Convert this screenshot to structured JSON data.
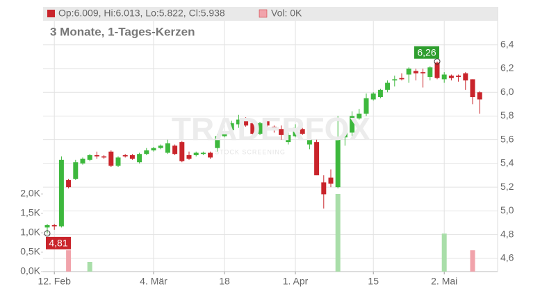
{
  "chart_data": {
    "type": "candlestick",
    "title": "Op:6.009, Hi:6.013, Lo:5.822, Cl:5.938",
    "volume_title": "Vol: 0K",
    "subtitle": "3 Monate, 1-Tages-Kerzen",
    "watermark": "TRADERFOX",
    "watermark_sub": "STOCK SCREENING",
    "up_color": "#3db83d",
    "down_color": "#c9242b",
    "volume_up_color": "#a9dea9",
    "volume_down_color": "#f1a3ab",
    "categories": [
      null,
      "12. Feb",
      null,
      null,
      null,
      null,
      null,
      null,
      null,
      null,
      null,
      null,
      null,
      null,
      null,
      "4. Mär",
      null,
      null,
      null,
      null,
      null,
      null,
      null,
      null,
      null,
      "18",
      null,
      null,
      null,
      null,
      null,
      null,
      null,
      null,
      null,
      "1. Apr",
      null,
      null,
      null,
      null,
      null,
      null,
      null,
      null,
      null,
      null,
      "15",
      null,
      null,
      null,
      null,
      null,
      null,
      null,
      null,
      null,
      "2. Mai",
      null,
      null,
      null,
      null,
      null
    ],
    "open": [
      4.86,
      4.88,
      4.87,
      5.26,
      5.27,
      5.4,
      5.43,
      5.47,
      5.46,
      5.5,
      5.38,
      5.47,
      5.47,
      5.41,
      5.48,
      5.51,
      5.53,
      5.49,
      5.55,
      5.58,
      5.47,
      5.47,
      5.48,
      5.49,
      5.53,
      5.63,
      5.68,
      5.73,
      5.77,
      5.74,
      5.65,
      5.76,
      5.71,
      5.69,
      5.58,
      5.63,
      5.69,
      5.56,
      5.58,
      5.24,
      5.28,
      5.2,
      5.62,
      5.66,
      5.78,
      5.82,
      5.94,
      5.96,
      6.02,
      6.1,
      6.12,
      6.15,
      6.18,
      6.17,
      6.13,
      6.25,
      6.11,
      6.14,
      6.14,
      6.16,
      6.11,
      6.0
    ],
    "high": [
      4.89,
      4.89,
      5.46,
      5.27,
      5.43,
      5.45,
      5.48,
      5.5,
      5.47,
      5.51,
      5.46,
      5.48,
      5.48,
      5.49,
      5.53,
      5.54,
      5.56,
      5.6,
      5.56,
      5.59,
      5.5,
      5.5,
      5.5,
      5.5,
      5.65,
      5.67,
      5.76,
      5.81,
      5.79,
      5.76,
      5.75,
      5.77,
      5.72,
      5.72,
      5.66,
      5.73,
      5.7,
      5.62,
      5.6,
      5.3,
      5.35,
      5.8,
      5.75,
      5.84,
      5.86,
      5.99,
      6.0,
      6.03,
      6.1,
      6.14,
      6.16,
      6.21,
      6.2,
      6.2,
      6.22,
      6.26,
      6.17,
      6.15,
      6.15,
      6.17,
      6.11,
      6.01
    ],
    "low": [
      4.81,
      4.84,
      4.86,
      5.19,
      5.26,
      5.39,
      5.42,
      5.44,
      5.44,
      5.37,
      5.37,
      5.45,
      5.43,
      5.4,
      5.47,
      5.5,
      5.52,
      5.48,
      5.47,
      5.41,
      5.43,
      5.46,
      5.47,
      5.44,
      5.5,
      5.62,
      5.67,
      5.7,
      5.71,
      5.64,
      5.64,
      5.71,
      5.66,
      5.6,
      5.56,
      5.62,
      5.64,
      5.52,
      5.3,
      5.02,
      5.2,
      5.19,
      5.55,
      5.63,
      5.77,
      5.8,
      5.93,
      5.95,
      6.0,
      6.05,
      6.1,
      6.08,
      6.1,
      6.04,
      6.1,
      6.11,
      6.08,
      6.1,
      6.09,
      6.02,
      5.9,
      5.82
    ],
    "close": [
      4.88,
      4.87,
      5.43,
      5.2,
      5.41,
      5.44,
      5.47,
      5.46,
      5.45,
      5.38,
      5.45,
      5.46,
      5.44,
      5.48,
      5.51,
      5.53,
      5.55,
      5.57,
      5.48,
      5.42,
      5.44,
      5.49,
      5.49,
      5.45,
      5.63,
      5.65,
      5.74,
      5.77,
      5.72,
      5.65,
      5.74,
      5.72,
      5.68,
      5.64,
      5.64,
      5.7,
      5.65,
      5.6,
      5.3,
      5.14,
      5.23,
      5.6,
      5.66,
      5.8,
      5.82,
      5.95,
      5.99,
      6.02,
      6.08,
      6.11,
      6.11,
      6.2,
      6.16,
      6.16,
      6.21,
      6.12,
      6.15,
      6.12,
      6.13,
      6.1,
      5.96,
      5.94
    ],
    "volume": [
      0,
      0,
      0,
      0.55,
      0,
      0,
      0.25,
      0,
      0,
      0,
      0,
      0,
      0,
      0,
      0,
      0,
      0,
      0,
      0,
      0,
      0,
      0,
      0,
      0,
      0,
      0,
      0,
      0,
      0,
      0,
      0,
      0,
      0,
      0,
      0,
      0,
      0,
      0,
      0,
      0,
      0,
      2.0,
      0,
      0,
      0,
      0,
      0,
      0,
      0,
      0,
      0,
      0,
      0,
      0,
      0,
      0,
      0.98,
      0,
      0,
      0,
      0.55,
      0
    ],
    "annotations": [
      {
        "text": "6,26",
        "at": "max_high"
      },
      {
        "text": "4,81",
        "at": "min_low"
      }
    ],
    "ylim": [
      4.488,
      6.72
    ],
    "yticks": [
      {
        "value": 4.6,
        "label": "4,6"
      },
      {
        "value": 4.8,
        "label": "4,8"
      },
      {
        "value": 5.0,
        "label": "5,0"
      },
      {
        "value": 5.2,
        "label": "5,2"
      },
      {
        "value": 5.4,
        "label": "5,4"
      },
      {
        "value": 5.6,
        "label": "5,6"
      },
      {
        "value": 5.8,
        "label": "5,8"
      },
      {
        "value": 6.0,
        "label": "6,0"
      },
      {
        "value": 6.2,
        "label": "6,2"
      },
      {
        "value": 6.4,
        "label": "6,4"
      }
    ],
    "y2lim": [
      0,
      6.82
    ],
    "y2ticks": [
      {
        "value": 0,
        "label": "0,0K"
      },
      {
        "value": 0.5,
        "label": "0,5K"
      },
      {
        "value": 1.0,
        "label": "1,0K"
      },
      {
        "value": 1.5,
        "label": "1,5K"
      },
      {
        "value": 2.0,
        "label": "2,0K"
      }
    ],
    "grid": true
  }
}
